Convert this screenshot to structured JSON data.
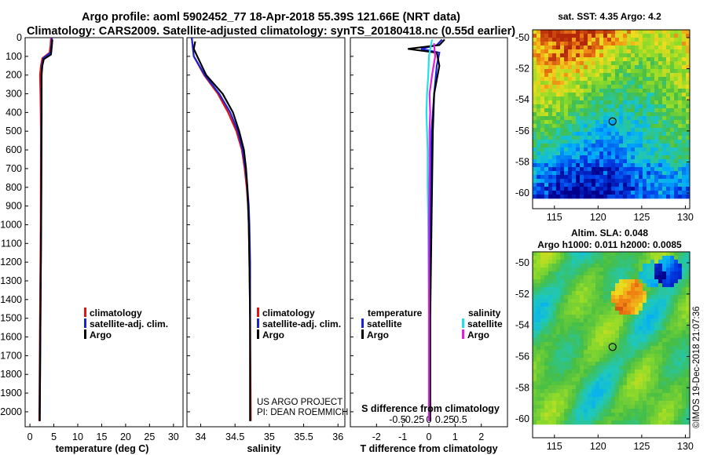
{
  "title": {
    "line1": "Argo profile: aoml 5902452_77 18-Apr-2018 55.39S 121.66E (NRT data)",
    "line2": "Climatology: CARS2009. Satellite-adjusted climatology: synTS_20180418.nc (0.55d earlier)"
  },
  "credits": {
    "line1": "US ARGO PROJECT",
    "line2": "PI: DEAN ROEMMICH"
  },
  "watermark": "©IMOS 19-Dec-2018 21:07:36",
  "colors": {
    "climatology": "#e8120c",
    "satellite": "#1a22d8",
    "argo": "#000000",
    "satellite_s": "#22e0e8",
    "argo_s": "#e020e0"
  },
  "chart_data": [
    {
      "type": "line",
      "id": "temperature",
      "xlabel": "temperature (deg C)",
      "xlim": [
        -1,
        32
      ],
      "xticks": [
        0,
        5,
        10,
        15,
        20,
        25,
        30
      ],
      "ylim": [
        2080,
        0
      ],
      "yticks": [
        0,
        100,
        200,
        300,
        400,
        500,
        600,
        700,
        800,
        900,
        1000,
        1100,
        1200,
        1300,
        1400,
        1500,
        1600,
        1700,
        1800,
        1900,
        2000
      ],
      "legend": [
        "climatology",
        "satellite-adj. clim.",
        "Argo"
      ],
      "series": [
        {
          "name": "climatology",
          "color": "#e8120c",
          "points": [
            [
              4.4,
              0
            ],
            [
              4.3,
              40
            ],
            [
              4.1,
              80
            ],
            [
              2.6,
              110
            ],
            [
              2.3,
              150
            ],
            [
              2.1,
              200
            ],
            [
              2.2,
              300
            ],
            [
              2.3,
              500
            ],
            [
              2.25,
              1000
            ],
            [
              2.1,
              1500
            ],
            [
              1.95,
              2050
            ]
          ]
        },
        {
          "name": "satellite-adj. clim.",
          "color": "#1a22d8",
          "points": [
            [
              4.6,
              0
            ],
            [
              4.5,
              40
            ],
            [
              4.3,
              80
            ],
            [
              2.8,
              110
            ],
            [
              2.5,
              150
            ],
            [
              2.4,
              200
            ],
            [
              2.4,
              300
            ],
            [
              2.4,
              500
            ],
            [
              2.35,
              1000
            ],
            [
              2.2,
              1500
            ],
            [
              2.05,
              2050
            ]
          ]
        },
        {
          "name": "Argo",
          "color": "#000000",
          "points": [
            [
              4.7,
              10
            ],
            [
              4.6,
              40
            ],
            [
              4.4,
              90
            ],
            [
              2.9,
              115
            ],
            [
              2.6,
              150
            ],
            [
              2.45,
              200
            ],
            [
              2.45,
              400
            ],
            [
              2.35,
              1000
            ],
            [
              2.2,
              1500
            ],
            [
              2.05,
              2050
            ]
          ]
        }
      ]
    },
    {
      "type": "line",
      "id": "salinity",
      "xlabel": "salinity",
      "xlim": [
        33.8,
        36.1
      ],
      "xticks": [
        34,
        34.5,
        35,
        35.5,
        36
      ],
      "ylim": [
        2080,
        0
      ],
      "legend": [
        "climatology",
        "satellite-adj. clim.",
        "Argo"
      ],
      "series": [
        {
          "name": "climatology",
          "color": "#e8120c",
          "points": [
            [
              33.87,
              0
            ],
            [
              33.9,
              100
            ],
            [
              34.05,
              200
            ],
            [
              34.25,
              300
            ],
            [
              34.4,
              400
            ],
            [
              34.52,
              500
            ],
            [
              34.6,
              600
            ],
            [
              34.64,
              700
            ],
            [
              34.67,
              800
            ],
            [
              34.69,
              900
            ],
            [
              34.7,
              1000
            ],
            [
              34.71,
              1200
            ],
            [
              34.72,
              1500
            ],
            [
              34.73,
              2050
            ]
          ]
        },
        {
          "name": "satellite-adj. clim.",
          "color": "#1a22d8",
          "points": [
            [
              33.87,
              0
            ],
            [
              33.9,
              100
            ],
            [
              34.06,
              200
            ],
            [
              34.27,
              300
            ],
            [
              34.43,
              400
            ],
            [
              34.54,
              500
            ],
            [
              34.61,
              600
            ],
            [
              34.65,
              700
            ],
            [
              34.68,
              800
            ],
            [
              34.7,
              900
            ],
            [
              34.71,
              1000
            ],
            [
              34.72,
              1200
            ],
            [
              34.72,
              1500
            ],
            [
              34.72,
              2050
            ]
          ]
        },
        {
          "name": "Argo",
          "color": "#000000",
          "points": [
            [
              33.92,
              20
            ],
            [
              33.9,
              60
            ],
            [
              33.95,
              100
            ],
            [
              34.08,
              200
            ],
            [
              34.32,
              300
            ],
            [
              34.47,
              400
            ],
            [
              34.56,
              500
            ],
            [
              34.63,
              600
            ],
            [
              34.66,
              700
            ],
            [
              34.68,
              800
            ],
            [
              34.69,
              900
            ],
            [
              34.7,
              1000
            ],
            [
              34.71,
              1200
            ],
            [
              34.72,
              1500
            ],
            [
              34.72,
              2050
            ]
          ]
        }
      ]
    },
    {
      "type": "line",
      "id": "difference",
      "xlabel": "T difference from climatology",
      "xlabel2": "S difference from climatology",
      "xlim": [
        -3,
        3
      ],
      "xticks": [
        -2,
        -1,
        0,
        1,
        2
      ],
      "xticks2": [
        -0.5,
        -0.25,
        0,
        0.25,
        0.5
      ],
      "xticks2_labels": [
        "-0.5",
        "-0.25",
        "0",
        "0.25",
        "0.5"
      ],
      "ylim": [
        2080,
        0
      ],
      "legend_t_title": "temperature",
      "legend_s_title": "salinity",
      "legend_labels": [
        "satellite",
        "Argo"
      ],
      "series": [
        {
          "name": "T satellite",
          "color": "#1a22d8",
          "points": [
            [
              0.5,
              10
            ],
            [
              0.3,
              40
            ],
            [
              -0.3,
              60
            ],
            [
              0.4,
              80
            ],
            [
              0.3,
              150
            ],
            [
              0.2,
              300
            ],
            [
              0.1,
              500
            ],
            [
              0.05,
              1000
            ],
            [
              0.03,
              1500
            ],
            [
              0.03,
              2050
            ]
          ]
        },
        {
          "name": "T Argo",
          "color": "#000000",
          "points": [
            [
              0.6,
              10
            ],
            [
              0.4,
              40
            ],
            [
              -0.8,
              60
            ],
            [
              0.3,
              80
            ],
            [
              0.4,
              150
            ],
            [
              0.2,
              300
            ],
            [
              0.15,
              500
            ],
            [
              0.1,
              1000
            ],
            [
              0.05,
              1500
            ],
            [
              0.05,
              2050
            ]
          ]
        },
        {
          "name": "S satellite",
          "color": "#22e0e8",
          "points": [
            [
              0.05,
              10
            ],
            [
              0.0,
              100
            ],
            [
              -0.01,
              200
            ],
            [
              -0.03,
              300
            ],
            [
              -0.04,
              400
            ],
            [
              -0.03,
              500
            ],
            [
              -0.02,
              600
            ],
            [
              -0.02,
              800
            ],
            [
              -0.01,
              1000
            ],
            [
              0.0,
              1500
            ],
            [
              0.0,
              2050
            ]
          ]
        },
        {
          "name": "S Argo",
          "color": "#e020e0",
          "points": [
            [
              0.08,
              30
            ],
            [
              0.1,
              100
            ],
            [
              0.05,
              200
            ],
            [
              0.01,
              300
            ],
            [
              0.02,
              400
            ],
            [
              0.01,
              500
            ],
            [
              0.01,
              700
            ],
            [
              0.0,
              1000
            ],
            [
              0.0,
              1500
            ],
            [
              0.0,
              2050
            ]
          ]
        }
      ]
    },
    {
      "type": "heatmap",
      "id": "sst_map",
      "title": "sat. SST: 4.35 Argo: 4.2",
      "xticks": [
        115,
        120,
        125,
        130
      ],
      "yticks": [
        -50,
        -52,
        -54,
        -56,
        -58,
        -60
      ],
      "xlim": [
        112.5,
        130.5
      ],
      "ylim": [
        -61,
        -49.5
      ],
      "data_ylim": [
        -60.3,
        -49.5
      ],
      "argo_point": {
        "lon": 121.66,
        "lat": -55.39
      }
    },
    {
      "type": "heatmap",
      "id": "sla_map",
      "title": "Altim. SLA: 0.048",
      "subtitle": "Argo h1000: 0.011 h2000: 0.0085",
      "xticks": [
        115,
        120,
        125,
        130
      ],
      "yticks": [
        -50,
        -52,
        -54,
        -56,
        -58,
        -60
      ],
      "xlim": [
        112.5,
        130.5
      ],
      "ylim": [
        -61.2,
        -49.3
      ],
      "data_ylim": [
        -60.2,
        -49.3
      ],
      "argo_point": {
        "lon": 121.66,
        "lat": -55.39
      }
    }
  ]
}
